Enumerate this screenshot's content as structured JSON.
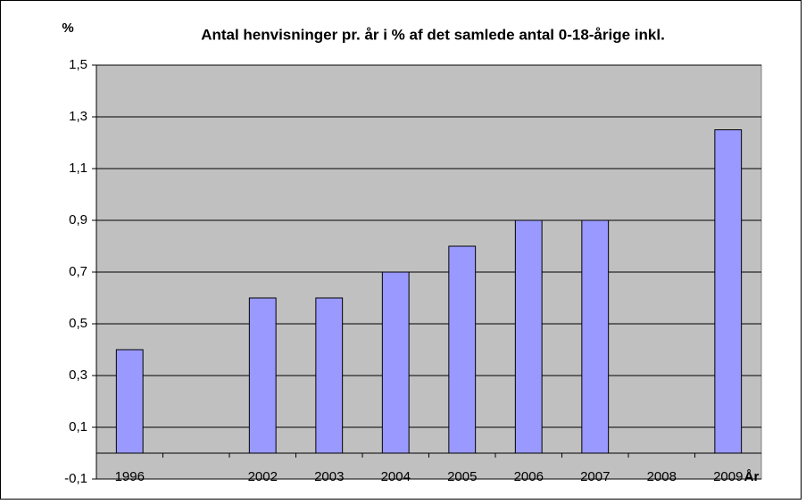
{
  "chart_data": {
    "type": "bar",
    "title": "Antal henvisninger pr. år i % af det samlede antal 0-18-årige inkl.",
    "y_label": "%",
    "x_label": "År",
    "categories": [
      "1996",
      null,
      "2002",
      "2003",
      "2004",
      "2005",
      "2006",
      "2007",
      "2008",
      "2009"
    ],
    "values": [
      0.4,
      null,
      0.6,
      0.6,
      0.7,
      0.8,
      0.9,
      0.9,
      null,
      1.25
    ],
    "color": "#9999ff",
    "ylim": [
      -0.1,
      1.5
    ],
    "yticks": [
      {
        "value": -0.1,
        "label": "-0,1"
      },
      {
        "value": 0.1,
        "label": "0,1"
      },
      {
        "value": 0.3,
        "label": "0,3"
      },
      {
        "value": 0.5,
        "label": "0,5"
      },
      {
        "value": 0.7,
        "label": "0,7"
      },
      {
        "value": 0.9,
        "label": "0,9"
      },
      {
        "value": 1.1,
        "label": "1,1"
      },
      {
        "value": 1.3,
        "label": "1,3"
      },
      {
        "value": 1.5,
        "label": "1,5"
      }
    ],
    "grid": true
  }
}
